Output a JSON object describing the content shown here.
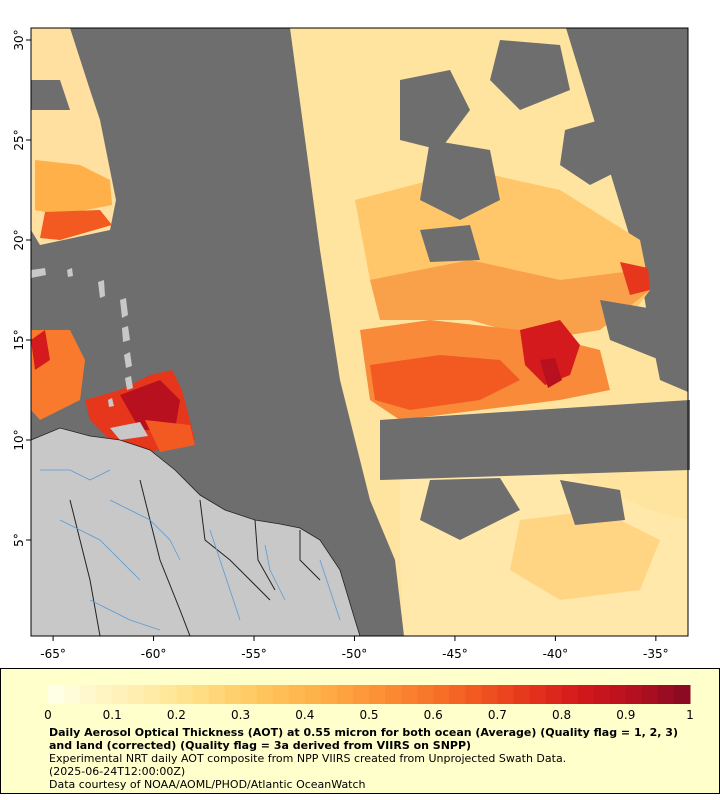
{
  "map": {
    "x_ticks": [
      {
        "lon": -65,
        "label": "-65°"
      },
      {
        "lon": -60,
        "label": "-60°"
      },
      {
        "lon": -55,
        "label": "-55°"
      },
      {
        "lon": -50,
        "label": "-50°"
      },
      {
        "lon": -45,
        "label": "-45°"
      },
      {
        "lon": -40,
        "label": "-40°"
      },
      {
        "lon": -35,
        "label": "-35°"
      }
    ],
    "y_ticks": [
      {
        "lat": 30,
        "label": "30°"
      },
      {
        "lat": 25,
        "label": "25°"
      },
      {
        "lat": 20,
        "label": "20°"
      },
      {
        "lat": 15,
        "label": "15°"
      },
      {
        "lat": 10,
        "label": "10°"
      },
      {
        "lat": 5,
        "label": "5°"
      }
    ],
    "lon_range": [
      -66.1,
      -33.4
    ],
    "lat_range": [
      0.2,
      30.6
    ],
    "colors": {
      "nodata": "#6e6e6e",
      "land": "#c8c8c8",
      "rivers": "#5b9bd5",
      "borders": "#222222"
    }
  },
  "colorbar": {
    "ticks": [
      "0",
      "0.1",
      "0.2",
      "0.3",
      "0.4",
      "0.5",
      "0.6",
      "0.7",
      "0.8",
      "0.9",
      "1"
    ],
    "range": [
      0,
      1
    ],
    "colors": [
      "#ffffe6",
      "#fff4c0",
      "#ffe9a0",
      "#ffd97a",
      "#ffc55c",
      "#ffb048",
      "#fd9538",
      "#f97a2c",
      "#f25a22",
      "#e6361c",
      "#d41a1c",
      "#b8101f",
      "#8c0a22"
    ]
  },
  "caption": {
    "title": "Daily Aerosol Optical Thickness (AOT) at 0.55 micron for both ocean (Average) (Quality flag = 1, 2, 3) and land (corrected) (Quality flag = 3a derived from VIIRS on SNPP)",
    "line1": "Experimental NRT daily AOT composite from NPP VIIRS created from Unprojected Swath Data.",
    "line2": "(2025-06-24T12:00:00Z)",
    "line3": "Data courtesy of NOAA/AOML/PHOD/Atlantic OceanWatch"
  }
}
